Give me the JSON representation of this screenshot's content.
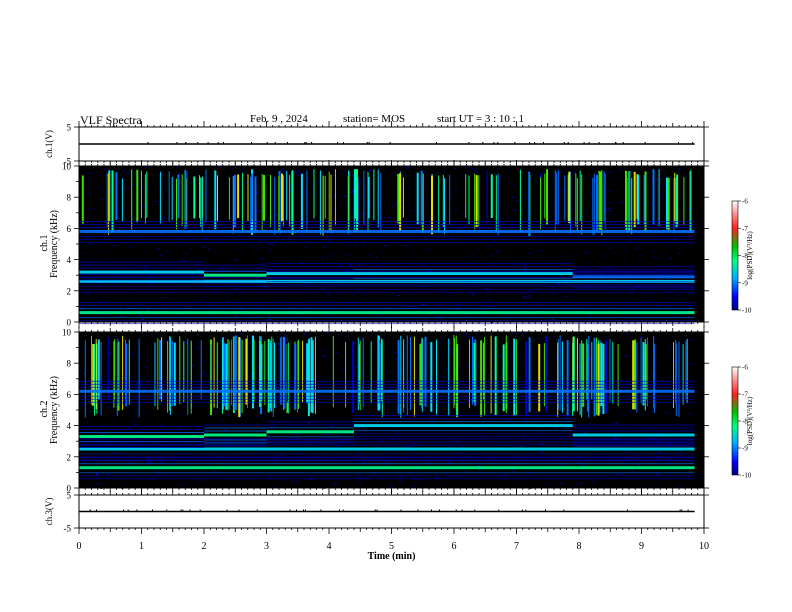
{
  "header": {
    "title": "VLF Spectra",
    "date": "Feb. 9 , 2024",
    "station": "station= MOS",
    "start": "start UT =  3 : 10 : 1"
  },
  "chart_data": [
    {
      "type": "line",
      "name": "ch1-waveform",
      "ylabel": "ch.1(V)",
      "ylim": [
        -5,
        5
      ],
      "yticks": [
        "5",
        "-5"
      ],
      "x": [
        0,
        9.85
      ],
      "values": [
        0,
        0
      ]
    },
    {
      "type": "heatmap",
      "name": "ch1-spectrogram",
      "ylabel_top": "ch.1",
      "ylabel": "Frequency (kHz)",
      "ylim": [
        0,
        10
      ],
      "yticks": [
        "0",
        "2",
        "4",
        "6",
        "8",
        "10"
      ],
      "xlim": [
        0,
        10
      ],
      "colorbar": {
        "label": "log(PSD)(V²/Hz)",
        "ticks": [
          "-6",
          "-7",
          "-8",
          "-9",
          "-10"
        ],
        "range": [
          -10,
          -6
        ]
      },
      "sferic_band_khz": [
        5.5,
        9.8
      ],
      "bands": [
        {
          "from_min": 0,
          "to_min": 9.85,
          "freq_khz": 0.6,
          "level": -8.2
        },
        {
          "from_min": 0,
          "to_min": 9.85,
          "freq_khz": 2.6,
          "level": -8.6
        },
        {
          "from_min": 0,
          "to_min": 2.0,
          "freq_khz": 3.2,
          "level": -8.5
        },
        {
          "from_min": 2.0,
          "to_min": 3.0,
          "freq_khz": 3.0,
          "level": -8.3
        },
        {
          "from_min": 3.0,
          "to_min": 4.4,
          "freq_khz": 3.1,
          "level": -8.7
        },
        {
          "from_min": 4.4,
          "to_min": 7.9,
          "freq_khz": 3.1,
          "level": -8.4
        },
        {
          "from_min": 7.9,
          "to_min": 9.85,
          "freq_khz": 2.9,
          "level": -8.8
        },
        {
          "from_min": 0,
          "to_min": 9.85,
          "freq_khz": 5.8,
          "level": -8.9
        }
      ]
    },
    {
      "type": "heatmap",
      "name": "ch2-spectrogram",
      "ylabel_top": "ch.2",
      "ylabel": "Frequency (kHz)",
      "ylim": [
        0,
        10
      ],
      "yticks": [
        "0",
        "2",
        "4",
        "6",
        "8",
        "10"
      ],
      "xlim": [
        0,
        10
      ],
      "colorbar": {
        "label": "log(PSD)(V²/Hz)",
        "ticks": [
          "-6",
          "-7",
          "-8",
          "-9",
          "-10"
        ],
        "range": [
          -10,
          -6
        ]
      },
      "sferic_band_khz": [
        4.5,
        9.8
      ],
      "bands": [
        {
          "from_min": 0,
          "to_min": 9.85,
          "freq_khz": 1.3,
          "level": -8.3
        },
        {
          "from_min": 0,
          "to_min": 9.85,
          "freq_khz": 2.5,
          "level": -8.5
        },
        {
          "from_min": 0,
          "to_min": 2.0,
          "freq_khz": 3.3,
          "level": -8.2
        },
        {
          "from_min": 2.0,
          "to_min": 3.0,
          "freq_khz": 3.4,
          "level": -8.1
        },
        {
          "from_min": 3.0,
          "to_min": 4.4,
          "freq_khz": 3.6,
          "level": -8.3
        },
        {
          "from_min": 4.4,
          "to_min": 7.9,
          "freq_khz": 4.0,
          "level": -8.4
        },
        {
          "from_min": 7.9,
          "to_min": 9.85,
          "freq_khz": 3.4,
          "level": -8.5
        },
        {
          "from_min": 0,
          "to_min": 9.85,
          "freq_khz": 6.2,
          "level": -8.8
        }
      ]
    },
    {
      "type": "line",
      "name": "ch3-waveform",
      "ylabel": "ch.3(V)",
      "ylim": [
        -5,
        5
      ],
      "yticks": [
        "5",
        "-5"
      ],
      "x": [
        0,
        9.85
      ],
      "values": [
        0,
        0
      ]
    }
  ],
  "xaxis": {
    "label": "Time (min)",
    "ticks": [
      "0",
      "1",
      "2",
      "3",
      "4",
      "5",
      "6",
      "7",
      "8",
      "9",
      "10"
    ],
    "range": [
      0,
      10
    ]
  }
}
